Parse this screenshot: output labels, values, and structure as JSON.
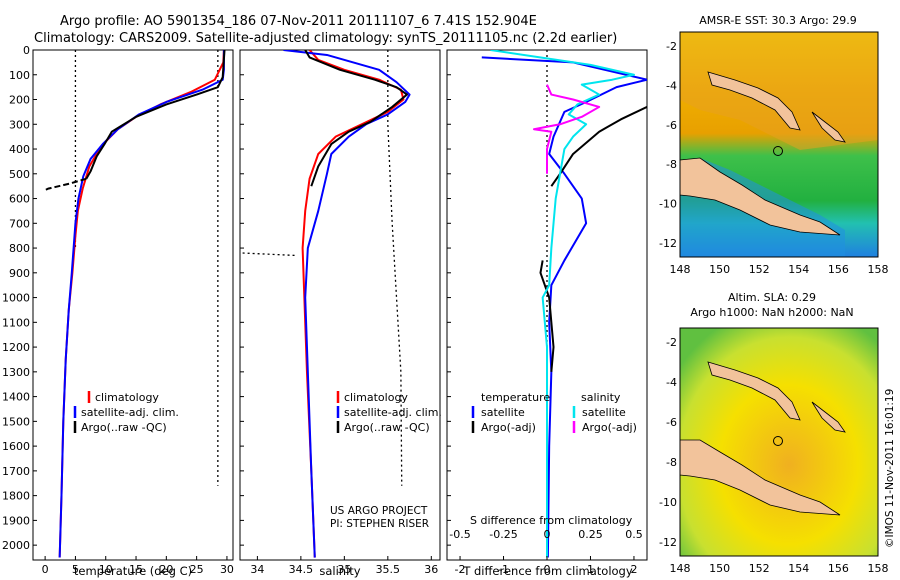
{
  "header": {
    "title_line1": "Argo profile: AO 5901354_186 07-Nov-2011 20111107_6 7.41S 152.904E",
    "title_line2": "Climatology: CARS2009. Satellite-adjusted climatology: synTS_20111105.nc (2.2d earlier)"
  },
  "depth_ticks": [
    0,
    100,
    200,
    300,
    400,
    500,
    600,
    700,
    800,
    900,
    1000,
    1100,
    1200,
    1300,
    1400,
    1500,
    1600,
    1700,
    1800,
    1900,
    2000
  ],
  "colors": {
    "climatology": "#ff0000",
    "satellite": "#0000ff",
    "argo": "#000000",
    "sal_sat": "#00e5ee",
    "sal_argo": "#ff00ff"
  },
  "chart_data": [
    {
      "type": "line",
      "title": "",
      "xlabel": "temperature (deg C)",
      "ylabel": "",
      "xlim": [
        -2,
        31
      ],
      "ylim": [
        2060,
        0
      ],
      "x_ticks": [
        0,
        5,
        10,
        15,
        20,
        25,
        30
      ],
      "legend": [
        "climatology",
        "satellite-adj. clim.",
        "Argo(..raw -QC)"
      ],
      "dotted_lines": [
        {
          "name": "mixed-layer-ref",
          "points": [
            [
              5,
              0
            ],
            [
              5,
              800
            ]
          ]
        },
        {
          "name": "sst-ref",
          "points": [
            [
              28.5,
              0
            ],
            [
              28.5,
              1760
            ]
          ]
        }
      ],
      "series": [
        {
          "name": "climatology",
          "color": "climatology",
          "points": [
            [
              29.5,
              0
            ],
            [
              29.4,
              50
            ],
            [
              28,
              120
            ],
            [
              24,
              170
            ],
            [
              19,
              220
            ],
            [
              15,
              270
            ],
            [
              12,
              320
            ],
            [
              10,
              370
            ],
            [
              8.5,
              420
            ],
            [
              7.3,
              470
            ],
            [
              6.2,
              560
            ],
            [
              5.4,
              650
            ],
            [
              5,
              750
            ],
            [
              4.5,
              900
            ],
            [
              3.9,
              1050
            ],
            [
              3.4,
              1250
            ],
            [
              3,
              1500
            ],
            [
              2.7,
              1800
            ],
            [
              2.4,
              2050
            ]
          ]
        },
        {
          "name": "satellite",
          "color": "satellite",
          "points": [
            [
              29.5,
              0
            ],
            [
              29.5,
              80
            ],
            [
              29.3,
              120
            ],
            [
              26,
              160
            ],
            [
              20,
              210
            ],
            [
              15.5,
              260
            ],
            [
              12,
              320
            ],
            [
              9.5,
              380
            ],
            [
              7.5,
              440
            ],
            [
              6.3,
              510
            ],
            [
              5.5,
              600
            ],
            [
              5,
              700
            ],
            [
              4.4,
              900
            ],
            [
              3.9,
              1050
            ],
            [
              3.4,
              1250
            ],
            [
              3,
              1500
            ],
            [
              2.7,
              1800
            ],
            [
              2.4,
              2050
            ]
          ]
        },
        {
          "name": "argo",
          "color": "argo",
          "points": [
            [
              29.6,
              0
            ],
            [
              29.3,
              110
            ],
            [
              28.5,
              150
            ],
            [
              25,
              180
            ],
            [
              20,
              220
            ],
            [
              15,
              270
            ],
            [
              11,
              330
            ],
            [
              9.8,
              380
            ],
            [
              8.5,
              430
            ],
            [
              7.5,
              490
            ],
            [
              6.8,
              520
            ]
          ]
        },
        {
          "name": "argo-dashed",
          "color": "argo",
          "dashed": true,
          "points": [
            [
              6.8,
              520
            ],
            [
              4,
              540
            ],
            [
              0.5,
              560
            ],
            [
              -0.3,
              570
            ]
          ]
        }
      ]
    },
    {
      "type": "line",
      "title": "",
      "xlabel": "salinity",
      "ylabel": "",
      "xlim": [
        33.8,
        36.1
      ],
      "ylim": [
        2060,
        0
      ],
      "x_ticks": [
        34,
        34.5,
        35,
        35.5,
        36
      ],
      "legend": [
        "climatology",
        "satellite-adj. clim.",
        "Argo(..raw -QC)"
      ],
      "annotation": [
        "US ARGO PROJECT",
        "PI: STEPHEN RISER"
      ],
      "dotted_lines": [
        {
          "name": "clim-ref",
          "points": [
            [
              35.5,
              0
            ],
            [
              35.5,
              300
            ],
            [
              35.55,
              700
            ],
            [
              35.65,
              1300
            ],
            [
              35.66,
              1760
            ]
          ]
        },
        {
          "name": "deep-ref",
          "points": [
            [
              33.83,
              820
            ],
            [
              34.45,
              830
            ]
          ]
        }
      ],
      "series": [
        {
          "name": "climatology",
          "color": "climatology",
          "points": [
            [
              34.6,
              0
            ],
            [
              34.7,
              40
            ],
            [
              35.0,
              80
            ],
            [
              35.4,
              120
            ],
            [
              35.65,
              160
            ],
            [
              35.68,
              200
            ],
            [
              35.5,
              250
            ],
            [
              35.2,
              300
            ],
            [
              34.9,
              350
            ],
            [
              34.7,
              420
            ],
            [
              34.6,
              520
            ],
            [
              34.55,
              650
            ],
            [
              34.52,
              800
            ],
            [
              34.54,
              1000
            ],
            [
              34.57,
              1300
            ],
            [
              34.62,
              1700
            ],
            [
              34.66,
              2050
            ]
          ]
        },
        {
          "name": "satellite",
          "color": "satellite",
          "points": [
            [
              34.3,
              0
            ],
            [
              34.8,
              20
            ],
            [
              35.4,
              80
            ],
            [
              35.6,
              130
            ],
            [
              35.75,
              180
            ],
            [
              35.7,
              210
            ],
            [
              35.5,
              260
            ],
            [
              35.25,
              300
            ],
            [
              35.05,
              350
            ],
            [
              34.85,
              420
            ],
            [
              34.8,
              500
            ],
            [
              34.7,
              650
            ],
            [
              34.58,
              800
            ],
            [
              34.55,
              1000
            ],
            [
              34.58,
              1300
            ],
            [
              34.62,
              1700
            ],
            [
              34.66,
              2050
            ]
          ]
        },
        {
          "name": "argo",
          "color": "argo",
          "points": [
            [
              34.55,
              0
            ],
            [
              34.6,
              30
            ],
            [
              34.95,
              80
            ],
            [
              35.35,
              120
            ],
            [
              35.6,
              150
            ],
            [
              35.72,
              180
            ],
            [
              35.55,
              230
            ],
            [
              35.3,
              290
            ],
            [
              35.05,
              330
            ],
            [
              34.85,
              380
            ],
            [
              34.7,
              470
            ],
            [
              34.62,
              550
            ]
          ]
        }
      ]
    },
    {
      "type": "line",
      "title": "",
      "xlabel": "T difference from climatology",
      "ylabel": "",
      "xlim": [
        -2.3,
        2.3
      ],
      "ylim": [
        2060,
        0
      ],
      "x_ticks": [
        -2,
        -1,
        0,
        1,
        2
      ],
      "x2_label": "S difference from climatology",
      "x2_ticks": [
        "-0.5",
        "-0.25",
        "0",
        "0.25",
        "0.5"
      ],
      "legend": [
        "temperature",
        "salinity",
        "satellite",
        "Argo(-adj)",
        "satellite",
        "Argo(-adj)"
      ],
      "dotted_lines": [
        {
          "name": "zero-line",
          "points": [
            [
              0,
              0
            ],
            [
              0,
              2060
            ]
          ]
        }
      ],
      "series": [
        {
          "name": "T satellite",
          "color": "satellite",
          "points": [
            [
              -1.5,
              30
            ],
            [
              0.6,
              50
            ],
            [
              2.3,
              120
            ],
            [
              1.6,
              150
            ],
            [
              0.9,
              210
            ],
            [
              0.4,
              250
            ],
            [
              0.15,
              350
            ],
            [
              0.05,
              420
            ],
            [
              0.4,
              500
            ],
            [
              0.8,
              600
            ],
            [
              0.9,
              700
            ],
            [
              0.4,
              850
            ],
            [
              0.1,
              950
            ],
            [
              0.05,
              1100
            ],
            [
              0.1,
              1300
            ],
            [
              0.05,
              1600
            ],
            [
              0.02,
              2050
            ]
          ]
        },
        {
          "name": "T argo",
          "color": "argo",
          "points": [
            [
              2.3,
              230
            ],
            [
              1.7,
              280
            ],
            [
              1.2,
              330
            ],
            [
              0.6,
              420
            ],
            [
              0.3,
              500
            ],
            [
              0.1,
              550
            ]
          ]
        },
        {
          "name": "T argo deep",
          "color": "argo",
          "points": [
            [
              -0.1,
              850
            ],
            [
              -0.15,
              900
            ],
            [
              0.05,
              1000
            ],
            [
              0.1,
              1100
            ],
            [
              0.15,
              1200
            ],
            [
              0.1,
              1300
            ]
          ]
        },
        {
          "name": "S satellite",
          "color": "sal_sat",
          "points": [
            [
              -1.3,
              0
            ],
            [
              1.0,
              60
            ],
            [
              2.0,
              100
            ],
            [
              1.5,
              120
            ],
            [
              0.8,
              140
            ],
            [
              1.2,
              180
            ],
            [
              0.7,
              220
            ],
            [
              0.5,
              260
            ],
            [
              0.9,
              300
            ],
            [
              0.6,
              350
            ],
            [
              0.4,
              400
            ],
            [
              0.3,
              500
            ],
            [
              0.2,
              600
            ],
            [
              0.1,
              800
            ],
            [
              0.05,
              950
            ],
            [
              -0.1,
              1000
            ],
            [
              0.0,
              1200
            ],
            [
              0.0,
              1600
            ],
            [
              0.0,
              2050
            ]
          ]
        },
        {
          "name": "S argo",
          "color": "sal_argo",
          "points": [
            [
              0.0,
              140
            ],
            [
              0.1,
              180
            ],
            [
              0.6,
              200
            ],
            [
              1.2,
              230
            ],
            [
              0.8,
              270
            ],
            [
              0.3,
              300
            ],
            [
              -0.3,
              320
            ],
            [
              0.1,
              330
            ],
            [
              0.0,
              400
            ],
            [
              0.0,
              500
            ]
          ]
        }
      ]
    }
  ],
  "map_sst": {
    "title": "AMSR-E SST: 30.3  Argo: 29.9",
    "lon_ticks": [
      "148",
      "150",
      "152",
      "154",
      "156",
      "158"
    ],
    "lat_ticks": [
      "-2",
      "-4",
      "-6",
      "-8",
      "-10",
      "-12"
    ]
  },
  "map_sla": {
    "title_line1": "Altim. SLA: 0.29",
    "title_line2": "Argo h1000: NaN  h2000: NaN",
    "lon_ticks": [
      "148",
      "150",
      "152",
      "154",
      "156",
      "158"
    ],
    "lat_ticks": [
      "-2",
      "-4",
      "-6",
      "-8",
      "-10",
      "-12"
    ]
  },
  "side_label": "©IMOS 11-Nov-2011 16:01:19"
}
